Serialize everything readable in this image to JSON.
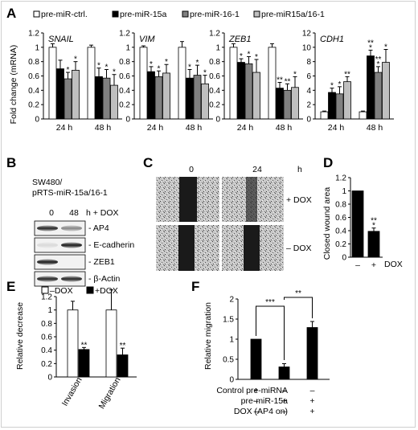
{
  "panels": {
    "A": "A",
    "B": "B",
    "C": "C",
    "D": "D",
    "E": "E",
    "F": "F"
  },
  "chart_data": [
    {
      "panel": "A",
      "type": "bar",
      "ylabel": "Fold change (mRNA)",
      "legend": [
        "pre-miR-ctrl.",
        "pre-miR-15a",
        "pre-miR-16-1",
        "pre-miR15a/16-1"
      ],
      "colors": [
        "#ffffff",
        "#000000",
        "#808080",
        "#bfbfbf"
      ],
      "groups": [
        "24 h",
        "48 h"
      ],
      "subplots": [
        {
          "gene": "SNAIL",
          "ylim": [
            0,
            1.2
          ],
          "ticks": [
            "0",
            "0.2",
            "0.4",
            "0.6",
            "0.8",
            "1",
            "1.2"
          ],
          "values": [
            [
              1.0,
              0.7,
              0.56,
              0.68
            ],
            [
              1.0,
              0.59,
              0.57,
              0.47
            ]
          ],
          "errors": [
            [
              0.05,
              0.12,
              0.09,
              0.12
            ],
            [
              0.03,
              0.12,
              0.12,
              0.15
            ]
          ],
          "stars": [
            [
              "",
              "",
              "*",
              "*"
            ],
            [
              "",
              "*",
              "*",
              "*"
            ]
          ]
        },
        {
          "gene": "VIM",
          "ylim": [
            0,
            1.2
          ],
          "ticks": [
            "0",
            "0.2",
            "0.4",
            "0.6",
            "0.8",
            "1",
            "1.2"
          ],
          "values": [
            [
              1.0,
              0.66,
              0.59,
              0.64
            ],
            [
              1.0,
              0.57,
              0.61,
              0.49
            ]
          ],
          "errors": [
            [
              0.02,
              0.07,
              0.08,
              0.12
            ],
            [
              0.08,
              0.12,
              0.14,
              0.12
            ]
          ],
          "stars": [
            [
              "",
              "*",
              "*",
              "*"
            ],
            [
              "",
              "*",
              "*",
              "*"
            ]
          ]
        },
        {
          "gene": "ZEB1",
          "ylim": [
            0,
            1.2
          ],
          "ticks": [
            "0",
            "0.2",
            "0.4",
            "0.6",
            "0.8",
            "1",
            "1.2"
          ],
          "values": [
            [
              1.0,
              0.79,
              0.77,
              0.65
            ],
            [
              1.0,
              0.43,
              0.4,
              0.44
            ]
          ],
          "errors": [
            [
              0.05,
              0.05,
              0.1,
              0.18
            ],
            [
              0.05,
              0.08,
              0.09,
              0.15
            ]
          ],
          "stars": [
            [
              "",
              "*",
              "*",
              "*"
            ],
            [
              "",
              "**",
              "**",
              "*"
            ]
          ]
        },
        {
          "gene": "CDH1",
          "ylim": [
            0,
            12
          ],
          "ticks": [
            "0",
            "2",
            "4",
            "6",
            "8",
            "10",
            "12"
          ],
          "values": [
            [
              1.0,
              3.7,
              3.5,
              5.2
            ],
            [
              1.0,
              8.8,
              6.5,
              7.9
            ]
          ],
          "errors": [
            [
              0.1,
              0.6,
              1.0,
              0.7
            ],
            [
              0.1,
              0.8,
              0.8,
              1.8
            ]
          ],
          "stars": [
            [
              "",
              "*",
              "*",
              "**"
            ],
            [
              "",
              "***",
              "***",
              "*"
            ]
          ]
        }
      ]
    },
    {
      "panel": "D",
      "type": "bar",
      "ylabel": "Closed wound area",
      "categories": [
        "–",
        "+"
      ],
      "xlabel": "DOX",
      "ylim": [
        0,
        1.2
      ],
      "ticks": [
        "0",
        "0.2",
        "0.4",
        "0.6",
        "0.8",
        "1",
        "1.2"
      ],
      "values": [
        1.0,
        0.39
      ],
      "errors": [
        0.0,
        0.05
      ],
      "stars": [
        "",
        "***"
      ]
    },
    {
      "panel": "E",
      "type": "bar",
      "ylabel": "Relative decrease",
      "legend": [
        "–DOX",
        "+DOX"
      ],
      "groups": [
        "Invasion",
        "Migration"
      ],
      "ylim": [
        0,
        1.2
      ],
      "ticks": [
        "0",
        "0.2",
        "0.4",
        "0.6",
        "0.8",
        "1",
        "1.2"
      ],
      "values": [
        [
          1.0,
          0.41
        ],
        [
          1.0,
          0.33
        ]
      ],
      "errors": [
        [
          0.13,
          0.03
        ],
        [
          0.3,
          0.1
        ]
      ],
      "stars": [
        [
          "",
          "**"
        ],
        [
          "",
          "**"
        ]
      ]
    },
    {
      "panel": "F",
      "type": "bar",
      "ylabel": "Relative migration",
      "ylim": [
        0,
        2
      ],
      "ticks": [
        "0",
        "0.5",
        "1",
        "1.5",
        "2"
      ],
      "values": [
        1.0,
        0.31,
        1.29
      ],
      "errors": [
        0.0,
        0.08,
        0.15
      ],
      "brackets": [
        "***",
        "**"
      ],
      "rows": [
        {
          "label": "Control pre-miRNA",
          "signs": [
            "+",
            "–",
            "–"
          ]
        },
        {
          "label": "pre-miR-15a",
          "signs": [
            "–",
            "+",
            "+"
          ]
        },
        {
          "label": "DOX (AP4 on)",
          "signs": [
            "–",
            "–",
            "+"
          ]
        }
      ]
    }
  ],
  "blot": {
    "cell_line": "SW480/",
    "construct": "pRTS-miR-15a/16-1",
    "lanes": [
      "0",
      "48"
    ],
    "lane_suffix": "h + DOX",
    "bands": [
      "- AP4",
      "- E-cadherin",
      "- ZEB1",
      "- β-Actin"
    ],
    "intensity": [
      [
        0.85,
        0.45
      ],
      [
        0.1,
        0.9
      ],
      [
        0.9,
        0.0
      ],
      [
        0.85,
        0.85
      ]
    ]
  },
  "wound": {
    "times": [
      "0",
      "24"
    ],
    "unit": "h",
    "rows": [
      "+ DOX",
      "– DOX"
    ]
  }
}
